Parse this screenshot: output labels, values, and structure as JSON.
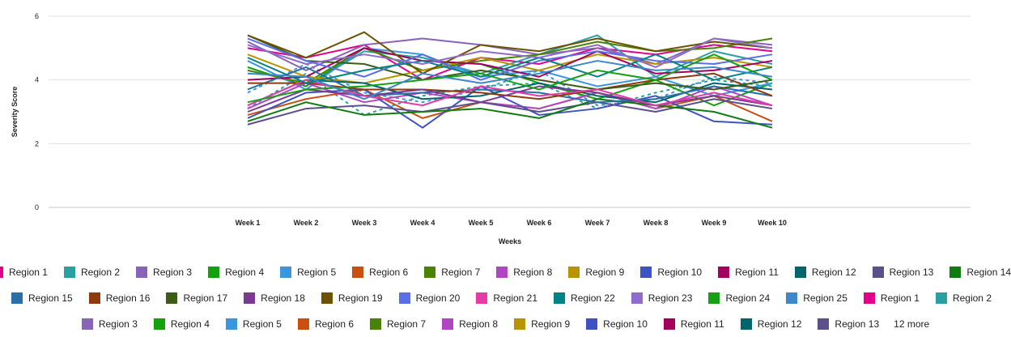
{
  "chart_data": {
    "type": "line",
    "xlabel": "Weeks",
    "ylabel": "Severity Score",
    "ylim": [
      0,
      6
    ],
    "yticks": [
      0,
      2,
      4,
      6
    ],
    "categories": [
      "Week 1",
      "Week 2",
      "Week 3",
      "Week 4",
      "Week 5",
      "Week 6",
      "Week 7",
      "Week 8",
      "Week 9",
      "Week 10"
    ],
    "grid": true,
    "legend_position": "bottom",
    "series": [
      {
        "name": "Region 1",
        "color": "#e3008c",
        "values": [
          5.0,
          4.7,
          5.1,
          4.0,
          4.7,
          4.5,
          5.0,
          4.8,
          5.1,
          4.9
        ]
      },
      {
        "name": "Region 2",
        "color": "#2aa0a4",
        "values": [
          4.4,
          3.8,
          4.9,
          4.7,
          4.2,
          4.8,
          5.4,
          4.1,
          4.9,
          4.5
        ]
      },
      {
        "name": "Region 3",
        "color": "#8764b8",
        "values": [
          5.2,
          4.3,
          5.1,
          5.3,
          5.1,
          4.8,
          5.0,
          4.5,
          5.3,
          5.1
        ]
      },
      {
        "name": "Region 4",
        "color": "#13a10e",
        "values": [
          4.4,
          3.8,
          5.0,
          4.6,
          4.5,
          3.9,
          3.4,
          4.0,
          3.2,
          3.9
        ]
      },
      {
        "name": "Region 5",
        "color": "#3a96dd",
        "values": [
          4.6,
          3.7,
          5.0,
          4.8,
          4.1,
          4.3,
          3.8,
          4.1,
          3.5,
          3.9
        ]
      },
      {
        "name": "Region 6",
        "color": "#ca5010",
        "values": [
          2.9,
          3.4,
          3.7,
          2.8,
          3.3,
          3.1,
          3.6,
          3.1,
          3.5,
          2.7
        ]
      },
      {
        "name": "Region 7",
        "color": "#498205",
        "values": [
          4.3,
          3.9,
          5.0,
          4.3,
          4.6,
          4.8,
          5.2,
          4.9,
          5.0,
          5.3
        ]
      },
      {
        "name": "Region 8",
        "color": "#b146c2",
        "values": [
          3.1,
          3.9,
          3.3,
          3.6,
          3.3,
          3.1,
          3.6,
          3.1,
          3.8,
          3.2
        ]
      },
      {
        "name": "Region 9",
        "color": "#b89500",
        "values": [
          4.8,
          4.1,
          3.9,
          4.3,
          4.7,
          4.3,
          4.8,
          4.5,
          4.7,
          4.4
        ]
      },
      {
        "name": "Region 10",
        "color": "#4052c2",
        "values": [
          2.8,
          3.6,
          3.7,
          2.5,
          3.8,
          2.9,
          3.1,
          3.5,
          2.7,
          2.6
        ]
      },
      {
        "name": "Region 11",
        "color": "#a3005e",
        "values": [
          4.0,
          4.1,
          5.0,
          4.6,
          4.5,
          4.1,
          4.9,
          4.2,
          4.3,
          4.6
        ]
      },
      {
        "name": "Region 12",
        "color": "#00666b",
        "values": [
          3.2,
          4.0,
          3.9,
          3.4,
          3.5,
          3.9,
          3.5,
          3.3,
          3.9,
          3.7
        ]
      },
      {
        "name": "Region 13",
        "color": "#5c4f8c",
        "values": [
          2.6,
          3.1,
          3.2,
          3.0,
          3.3,
          3.0,
          3.3,
          3.0,
          3.4,
          3.1
        ]
      },
      {
        "name": "Region 14",
        "color": "#107c10",
        "values": [
          2.7,
          3.3,
          2.9,
          3.0,
          3.1,
          2.8,
          3.4,
          3.2,
          3.0,
          2.5
        ]
      },
      {
        "name": "Region 15",
        "color": "#2b6fa8",
        "values": [
          3.7,
          4.4,
          3.5,
          3.6,
          3.7,
          3.6,
          3.3,
          3.4,
          3.8,
          3.5
        ]
      },
      {
        "name": "Region 16",
        "color": "#8e3a0e",
        "values": [
          3.9,
          3.9,
          3.7,
          3.7,
          3.6,
          3.4,
          3.7,
          4.0,
          4.2,
          3.5
        ]
      },
      {
        "name": "Region 17",
        "color": "#3b5d18",
        "values": [
          5.4,
          4.6,
          4.5,
          4.0,
          4.3,
          4.0,
          3.7,
          3.9,
          3.7,
          4.0
        ]
      },
      {
        "name": "Region 18",
        "color": "#7a3a94",
        "values": [
          3.0,
          3.7,
          3.5,
          3.7,
          3.3,
          3.8,
          3.6,
          3.2,
          3.5,
          3.2
        ]
      },
      {
        "name": "Region 19",
        "color": "#6b5200",
        "values": [
          5.4,
          4.7,
          5.5,
          4.2,
          5.1,
          4.9,
          5.3,
          4.9,
          5.2,
          5.0
        ]
      },
      {
        "name": "Region 20",
        "color": "#5a6ee6",
        "values": [
          5.3,
          4.6,
          4.1,
          4.8,
          4.0,
          4.6,
          4.9,
          4.6,
          4.5,
          4.8
        ]
      },
      {
        "name": "Region 21",
        "color": "#e43ba6",
        "values": [
          3.2,
          4.0,
          3.5,
          3.2,
          3.8,
          3.5,
          3.7,
          3.2,
          3.6,
          3.2
        ]
      },
      {
        "name": "Region 22",
        "color": "#038387",
        "values": [
          4.7,
          3.9,
          4.3,
          4.6,
          4.1,
          4.7,
          4.1,
          4.8,
          4.0,
          4.4
        ]
      },
      {
        "name": "Region 23",
        "color": "#8f6cc9",
        "values": [
          5.1,
          4.5,
          4.8,
          4.5,
          4.9,
          4.7,
          5.1,
          4.4,
          5.3,
          5.0
        ]
      },
      {
        "name": "Region 24",
        "color": "#16a016",
        "values": [
          3.3,
          3.7,
          3.8,
          4.0,
          4.2,
          3.7,
          4.3,
          4.0,
          4.8,
          4.0
        ]
      },
      {
        "name": "Region 25",
        "color": "#3c88c8",
        "values": [
          4.2,
          4.1,
          3.4,
          4.2,
          3.9,
          4.2,
          4.6,
          4.3,
          4.4,
          4.1
        ]
      }
    ],
    "dashed_series": [
      {
        "name": "Region 1",
        "color": "#2aa0a4",
        "values": [
          3.1,
          4.2,
          2.9,
          3.5,
          3.8,
          3.9,
          3.1,
          3.6,
          4.0,
          3.8
        ]
      },
      {
        "name": "Region 2",
        "color": "#3a96dd",
        "values": [
          3.6,
          4.5,
          3.6,
          3.3,
          3.7,
          4.3,
          3.2,
          3.4,
          4.1,
          3.9
        ]
      }
    ]
  },
  "legend": {
    "rows": [
      [
        {
          "label": "Region 1",
          "color": "#e3008c"
        },
        {
          "label": "Region 2",
          "color": "#2aa0a4"
        },
        {
          "label": "Region 3",
          "color": "#8764b8"
        },
        {
          "label": "Region 4",
          "color": "#13a10e"
        },
        {
          "label": "Region 5",
          "color": "#3a96dd"
        },
        {
          "label": "Region 6",
          "color": "#ca5010"
        },
        {
          "label": "Region 7",
          "color": "#498205"
        },
        {
          "label": "Region 8",
          "color": "#b146c2"
        },
        {
          "label": "Region 9",
          "color": "#b89500"
        },
        {
          "label": "Region 10",
          "color": "#4052c2"
        },
        {
          "label": "Region 11",
          "color": "#a3005e"
        },
        {
          "label": "Region 12",
          "color": "#00666b"
        },
        {
          "label": "Region 13",
          "color": "#5c4f8c"
        },
        {
          "label": "Region 14",
          "color": "#107c10"
        }
      ],
      [
        {
          "label": "Region 15",
          "color": "#2b6fa8"
        },
        {
          "label": "Region 16",
          "color": "#8e3a0e"
        },
        {
          "label": "Region 17",
          "color": "#3b5d18"
        },
        {
          "label": "Region 18",
          "color": "#7a3a94"
        },
        {
          "label": "Region 19",
          "color": "#6b5200"
        },
        {
          "label": "Region 20",
          "color": "#5a6ee6"
        },
        {
          "label": "Region 21",
          "color": "#e43ba6"
        },
        {
          "label": "Region 22",
          "color": "#038387"
        },
        {
          "label": "Region 23",
          "color": "#8f6cc9"
        },
        {
          "label": "Region 24",
          "color": "#16a016"
        },
        {
          "label": "Region 25",
          "color": "#3c88c8"
        },
        {
          "label": "Region 1",
          "color": "#e3008c"
        },
        {
          "label": "Region 2",
          "color": "#2aa0a4"
        }
      ],
      [
        {
          "label": "Region 3",
          "color": "#8764b8"
        },
        {
          "label": "Region 4",
          "color": "#13a10e"
        },
        {
          "label": "Region 5",
          "color": "#3a96dd"
        },
        {
          "label": "Region 6",
          "color": "#ca5010"
        },
        {
          "label": "Region 7",
          "color": "#498205"
        },
        {
          "label": "Region 8",
          "color": "#b146c2"
        },
        {
          "label": "Region 9",
          "color": "#b89500"
        },
        {
          "label": "Region 10",
          "color": "#4052c2"
        },
        {
          "label": "Region 11",
          "color": "#a3005e"
        },
        {
          "label": "Region 12",
          "color": "#00666b"
        },
        {
          "label": "Region 13",
          "color": "#5c4f8c"
        }
      ]
    ],
    "more_label": "12 more"
  }
}
